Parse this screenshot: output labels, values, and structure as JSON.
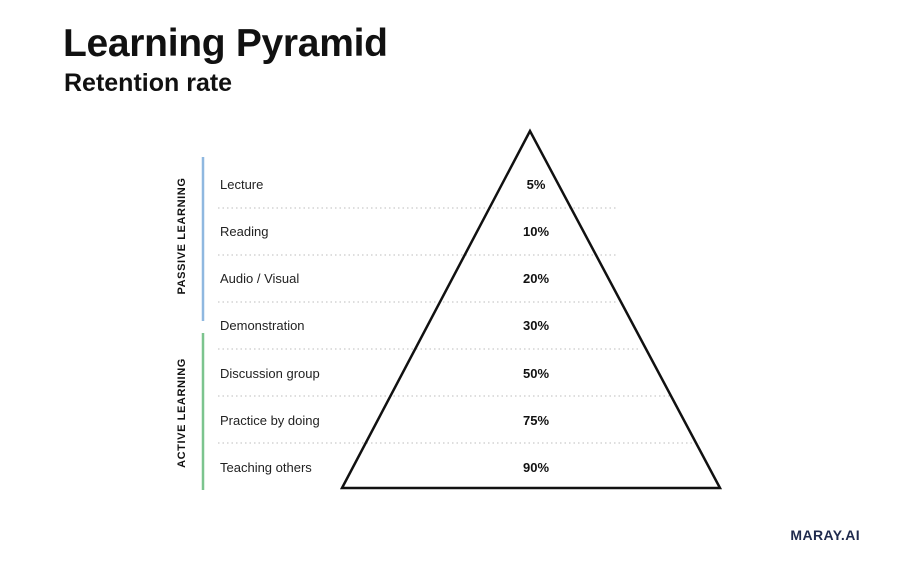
{
  "header": {
    "title": "Learning Pyramid",
    "subtitle": "Retention rate"
  },
  "groups": [
    {
      "label": "PASSIVE LEARNING",
      "color": "#8fb8e0"
    },
    {
      "label": "ACTIVE LEARNING",
      "color": "#7cc48e"
    }
  ],
  "rows": [
    {
      "label": "Lecture",
      "value": "5%"
    },
    {
      "label": "Reading",
      "value": "10%"
    },
    {
      "label": "Audio / Visual",
      "value": "20%"
    },
    {
      "label": "Demonstration",
      "value": "30%"
    },
    {
      "label": "Discussion group",
      "value": "50%"
    },
    {
      "label": "Practice by doing",
      "value": "75%"
    },
    {
      "label": "Teaching others",
      "value": "90%"
    }
  ],
  "brand": "MARAY.AI"
}
